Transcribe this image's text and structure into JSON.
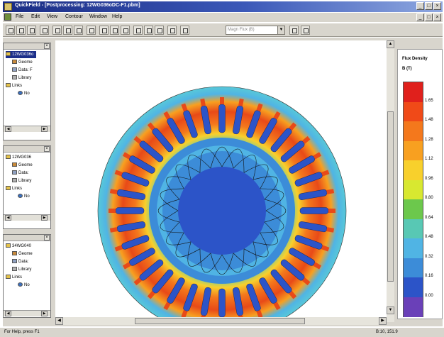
{
  "window": {
    "title": "QuickField - [Postprocessing: 12WG036oDC-F1.pbm]",
    "controls": [
      "_",
      "□",
      "×"
    ]
  },
  "menu": [
    "File",
    "Edit",
    "View",
    "Contour",
    "Window",
    "Help"
  ],
  "toolbar": {
    "combo_value": "Magn Flux (B)",
    "icons": [
      "open-icon",
      "save-icon",
      "print-icon",
      "copy-icon",
      "zoom-icon",
      "zoom-in-icon",
      "zoom-out-icon",
      "field-picture-icon",
      "contour-icon",
      "arrows-icon",
      "local-values-icon",
      "integral-icon",
      "plot-icon",
      "table-icon",
      "legend-icon",
      "color-icon"
    ]
  },
  "tree_panels": [
    {
      "root": "12WG036o",
      "items": [
        "Geome",
        "Data: F",
        "Library",
        "Links",
        "No"
      ]
    },
    {
      "root": "12WG036",
      "items": [
        "Geome",
        "Data:",
        "Library",
        "Links",
        "No"
      ]
    },
    {
      "root": "34WG040",
      "items": [
        "Geome",
        "Data:",
        "Library",
        "Links",
        "No"
      ]
    }
  ],
  "legend": {
    "title": "Flux Density",
    "unit": "B (T)",
    "ticks": [
      "1.65",
      "1.48",
      "1.28",
      "1.12",
      "0.96",
      "0.80",
      "0.64",
      "0.48",
      "0.32",
      "0.16",
      "0.00"
    ],
    "colors": [
      "#e0201c",
      "#f04a18",
      "#f4781c",
      "#f8a020",
      "#f8d02c",
      "#d8e830",
      "#6cc84c",
      "#58c8b4",
      "#50b4e4",
      "#3c8cd8",
      "#2c54c8",
      "#6a40b8"
    ]
  },
  "status": {
    "left": "For Help, press F1",
    "right": "B:10, 151.9"
  }
}
